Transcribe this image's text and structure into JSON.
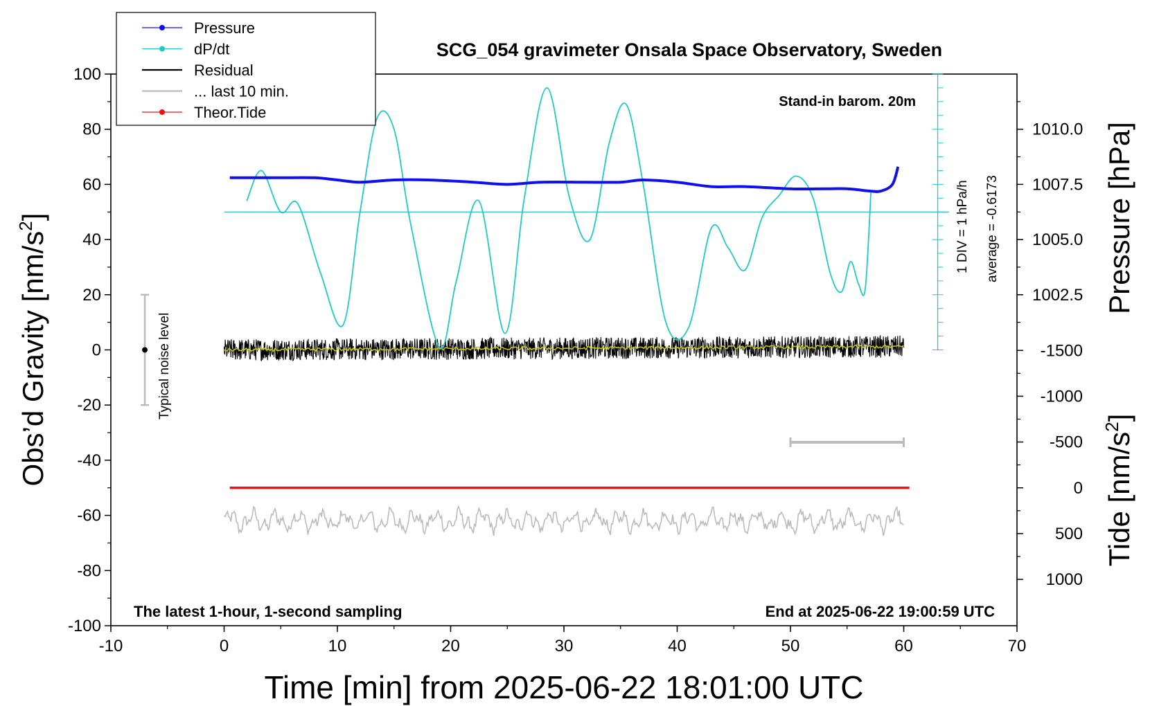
{
  "chart_data": {
    "type": "line",
    "title": "SCG_054 gravimeter Onsala Space Observatory, Sweden",
    "xlabel": "Time [min] from 2025-06-22 18:01:00 UTC",
    "ylabel_left_main": "Obs’d Gravity [nm/s",
    "ylabel_left_sup": "2",
    "ylabel_left_end": "]",
    "ylabel_right_top": "Pressure [hPa]",
    "ylabel_right_bottom_main": "Tide [nm/s",
    "ylabel_right_bottom_sup": "2",
    "ylabel_right_bottom_end": "]",
    "xlim": [
      -10,
      70
    ],
    "ylim_left": [
      -100,
      100
    ],
    "x_ticks": [
      "-10",
      "0",
      "10",
      "20",
      "30",
      "40",
      "50",
      "60",
      "70"
    ],
    "y_left_ticks": [
      "100",
      "80",
      "60",
      "40",
      "20",
      "0",
      "-20",
      "-40",
      "-60",
      "-80",
      "-100"
    ],
    "y_pressure_ticks": [
      "1010.0",
      "1007.5",
      "1005.0",
      "1002.5"
    ],
    "y_pressure_values": [
      1010.0,
      1007.5,
      1005.0,
      1002.5
    ],
    "y_tide_ticks": [
      "1000",
      "500",
      "0",
      "-500",
      "-1000",
      "-1500"
    ],
    "y_tide_values": [
      1000,
      500,
      0,
      -500,
      -1000,
      -1500
    ],
    "legend": [
      {
        "label": "Pressure",
        "color": "#1010ee",
        "style": "line-dot"
      },
      {
        "label": "dP/dt",
        "color": "#20c8c8",
        "style": "line-dot"
      },
      {
        "label": "Residual",
        "color": "#000000",
        "style": "line"
      },
      {
        "label": "... last 10 min.",
        "color": "#bbbbbb",
        "style": "line"
      },
      {
        "label": "Theor.Tide",
        "color": "#ee1010",
        "style": "line-dot"
      }
    ],
    "annotations": {
      "barometer": "Stand-in barom. 20m",
      "scale": "1 DIV = 1 hPa/h",
      "average": "average = -0.6173",
      "noise": "Typical noise level",
      "footer_left": "The latest 1-hour, 1-second sampling",
      "footer_right": "End at 2025-06-22 19:00:59 UTC"
    },
    "series": [
      {
        "name": "Pressure",
        "axis": "pressure_hPa",
        "color": "#1010ee",
        "x": [
          0.5,
          3,
          5,
          8,
          10,
          12,
          15,
          18,
          22,
          25,
          28,
          32,
          35,
          37,
          40,
          43,
          46,
          50,
          53,
          55,
          57,
          58,
          59,
          59.5
        ],
        "values": [
          1007.8,
          1007.8,
          1007.8,
          1007.8,
          1007.7,
          1007.6,
          1007.7,
          1007.7,
          1007.6,
          1007.5,
          1007.6,
          1007.6,
          1007.6,
          1007.7,
          1007.6,
          1007.4,
          1007.4,
          1007.3,
          1007.3,
          1007.3,
          1007.2,
          1007.2,
          1007.5,
          1008.3
        ]
      },
      {
        "name": "dP/dt",
        "axis": "gravity_scaled",
        "color": "#20c8c8",
        "x": [
          2,
          3.3,
          5,
          6.5,
          8.5,
          10.5,
          12,
          13.5,
          15,
          16.5,
          19,
          20.5,
          22.5,
          24.8,
          26.5,
          28.5,
          30.5,
          32.3,
          34,
          35.5,
          37,
          39,
          41,
          43,
          44.5,
          46,
          47.5,
          49,
          50.5,
          52,
          53.5,
          54.5,
          55.3,
          56,
          56.6,
          57.1
        ],
        "values": [
          54,
          65,
          50,
          53,
          28,
          9,
          50,
          84,
          80,
          45,
          1,
          25,
          54,
          6,
          55,
          95,
          55,
          40,
          75,
          89,
          60,
          10,
          8,
          44,
          37,
          29,
          48,
          56,
          63,
          55,
          28,
          21,
          32,
          24,
          22,
          57
        ]
      },
      {
        "name": "Theor.Tide",
        "axis": "tide_nm_s2",
        "color": "#ee1010",
        "x": [
          0.5,
          60.5
        ],
        "values": [
          0,
          0
        ]
      }
    ],
    "residual_summary": {
      "mean_nm_s2": 0,
      "amplitude_nm_s2": 4,
      "xlim": [
        0,
        60
      ]
    },
    "last_10_min_bar": {
      "x_start": 50,
      "x_end": 60
    },
    "noise_bar": {
      "x": -7,
      "y_center": 0,
      "y_min": -20,
      "y_max": 20
    }
  }
}
